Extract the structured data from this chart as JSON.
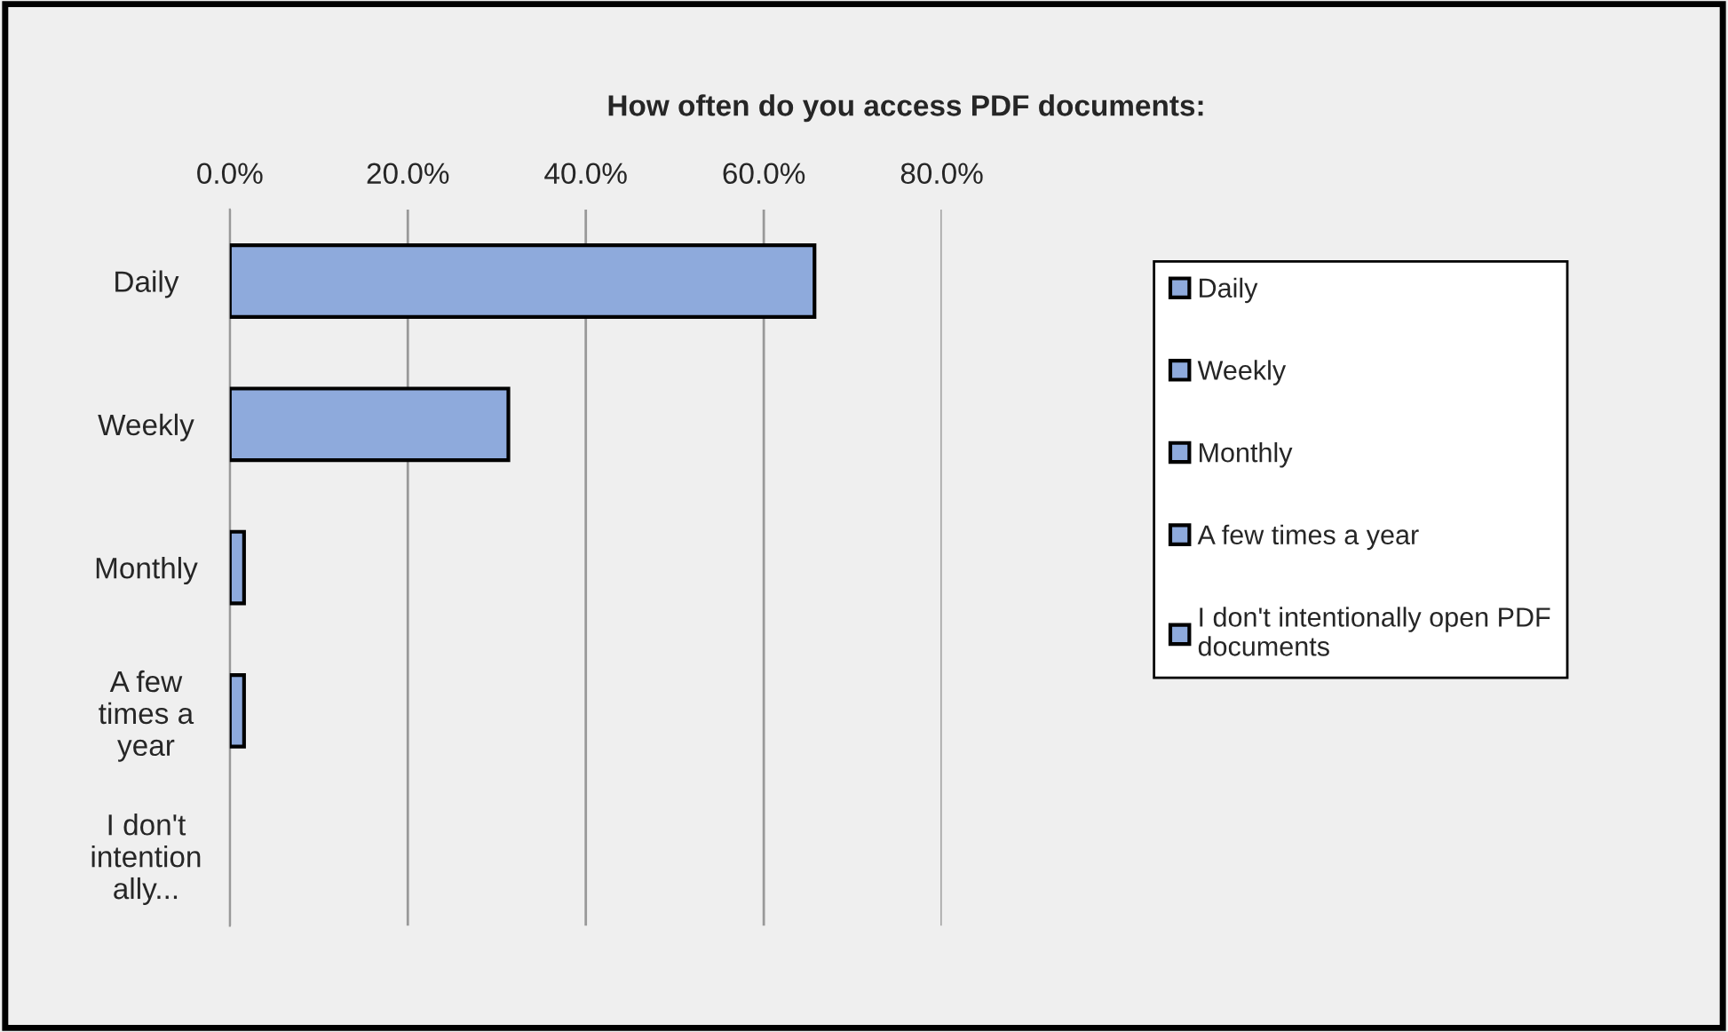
{
  "chart_data": {
    "type": "bar",
    "orientation": "horizontal",
    "title": "How often do you access PDF documents:",
    "categories": [
      "Daily",
      "Weekly",
      "Monthly",
      "A few\ntimes a\nyear",
      "I don't\nintention\nally..."
    ],
    "series": [
      {
        "name": "Daily",
        "color": "#8eaadc",
        "values": [
          65.7,
          null,
          null,
          null,
          null
        ]
      },
      {
        "name": "Weekly",
        "color": "#8eaadc",
        "values": [
          null,
          31.3,
          null,
          null,
          null
        ]
      },
      {
        "name": "Monthly",
        "color": "#8eaadc",
        "values": [
          null,
          null,
          1.6,
          null,
          null
        ]
      },
      {
        "name": "A few times a year",
        "color": "#8eaadc",
        "values": [
          null,
          null,
          null,
          1.6,
          null
        ]
      },
      {
        "name": "I don't intentionally open PDF\ndocuments",
        "color": "#8eaadc",
        "values": [
          null,
          null,
          null,
          null,
          null
        ]
      }
    ],
    "xlim": [
      0,
      80
    ],
    "xticks": [
      {
        "value": 0,
        "label": "0.0%"
      },
      {
        "value": 20,
        "label": "20.0%"
      },
      {
        "value": 40,
        "label": "40.0%"
      },
      {
        "value": 60,
        "label": "60.0%"
      },
      {
        "value": 80,
        "label": "80.0%"
      }
    ],
    "grid": "x",
    "legend": "right"
  }
}
